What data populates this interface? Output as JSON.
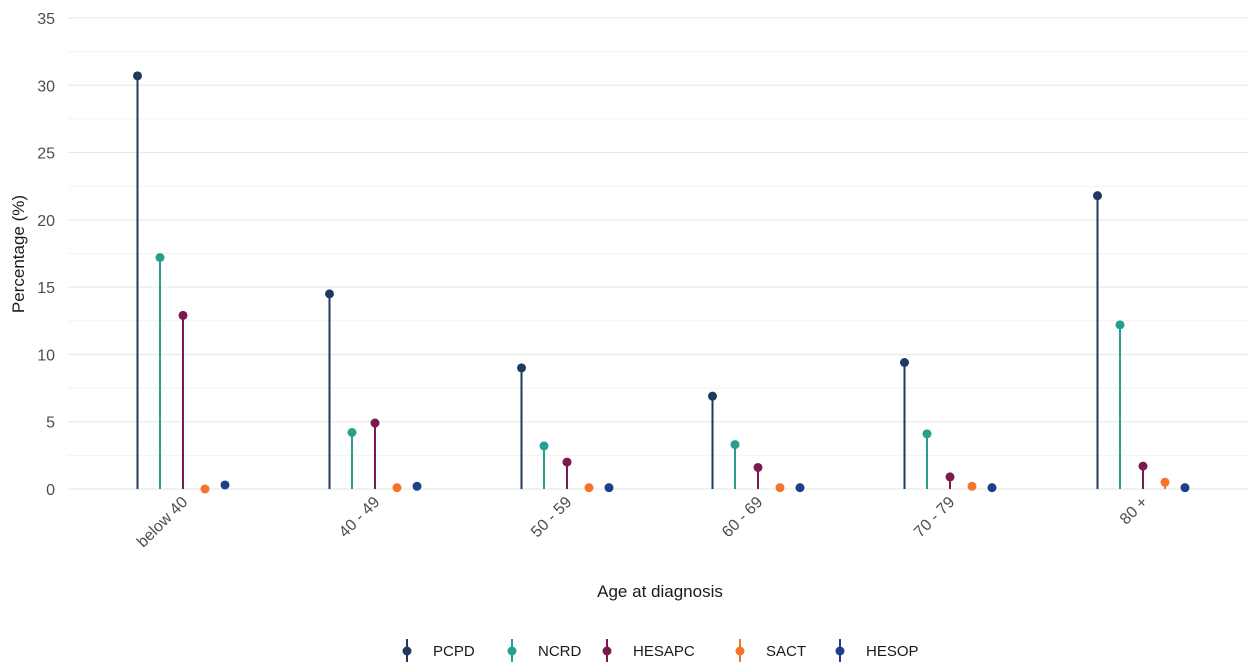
{
  "chart_data": {
    "type": "lollipop",
    "xlabel": "Age at diagnosis",
    "ylabel": "Percentage (%)",
    "ylim": [
      0,
      35
    ],
    "yticks": [
      0,
      5,
      10,
      15,
      20,
      25,
      30,
      35
    ],
    "grid": true,
    "legend_position": "bottom",
    "categories": [
      "below 40",
      "40 - 49",
      "50 - 59",
      "60 - 69",
      "70 - 79",
      "80 +"
    ],
    "series": [
      {
        "name": "PCPD",
        "color": "#1f3a5f",
        "values": [
          30.7,
          14.5,
          9.0,
          6.9,
          9.4,
          21.8
        ]
      },
      {
        "name": "NCRD",
        "color": "#2a9d8f",
        "values": [
          17.2,
          4.2,
          3.2,
          3.3,
          4.1,
          12.2
        ]
      },
      {
        "name": "HESAPC",
        "color": "#7b1a4e",
        "values": [
          12.9,
          4.9,
          2.0,
          1.6,
          0.9,
          1.7
        ]
      },
      {
        "name": "SACT",
        "color": "#f4742b",
        "values": [
          0.0,
          0.1,
          0.1,
          0.1,
          0.2,
          0.5
        ]
      },
      {
        "name": "HESOP",
        "color": "#1f3f8a",
        "values": [
          0.3,
          0.2,
          0.1,
          0.1,
          0.1,
          0.1
        ]
      }
    ]
  }
}
